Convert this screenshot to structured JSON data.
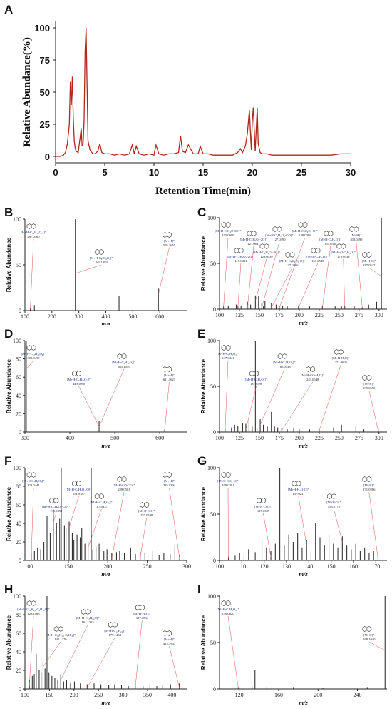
{
  "colors": {
    "chromatogram": "#b3261e",
    "peak": "#333333",
    "arrow": "#d9534f",
    "annotation": "#1a2a8c"
  },
  "chart_data": [
    {
      "panel": "A",
      "type": "line",
      "xlabel": "Retention Time(min)",
      "ylabel": "Relative Abundance(%)",
      "xlim": [
        0,
        30
      ],
      "ylim": [
        -5,
        105
      ],
      "xticks": [
        0,
        5,
        10,
        15,
        20,
        25,
        30
      ],
      "yticks": [
        0,
        25,
        50,
        75,
        100
      ],
      "x": [
        0,
        0.5,
        0.8,
        1.0,
        1.2,
        1.4,
        1.5,
        1.6,
        1.7,
        1.8,
        1.9,
        2.0,
        2.1,
        2.3,
        2.5,
        2.6,
        2.7,
        2.8,
        2.9,
        3.0,
        3.1,
        3.2,
        3.3,
        3.5,
        3.8,
        4.0,
        4.3,
        4.5,
        4.7,
        5.0,
        5.5,
        6.0,
        6.5,
        7.0,
        7.5,
        7.8,
        8.0,
        8.2,
        8.5,
        9.0,
        9.5,
        10.0,
        10.2,
        10.5,
        11.0,
        11.5,
        12.0,
        12.5,
        12.7,
        12.9,
        13.2,
        13.5,
        14.0,
        14.5,
        14.7,
        15.0,
        15.5,
        16,
        17,
        18,
        18.5,
        18.8,
        19.0,
        19.3,
        19.5,
        19.7,
        19.9,
        20.0,
        20.1,
        20.3,
        20.5,
        20.6,
        20.8,
        21.0,
        21.5,
        22,
        23,
        24,
        25,
        26,
        27,
        28,
        29,
        30
      ],
      "y": [
        0,
        0,
        1,
        3,
        10,
        25,
        58,
        40,
        62,
        30,
        12,
        6,
        4,
        3,
        15,
        22,
        8,
        10,
        28,
        82,
        100,
        55,
        12,
        5,
        2,
        2,
        4,
        10,
        3,
        2,
        2,
        1,
        2,
        1,
        2,
        9,
        2,
        8,
        2,
        1,
        2,
        1,
        9,
        2,
        1,
        2,
        2,
        3,
        16,
        4,
        3,
        9,
        2,
        2,
        8,
        2,
        2,
        1,
        1,
        1,
        3,
        6,
        3,
        8,
        18,
        36,
        5,
        28,
        38,
        4,
        38,
        10,
        3,
        2,
        2,
        1,
        1,
        1,
        1,
        1,
        1,
        1,
        2,
        2
      ]
    },
    {
      "panel": "B",
      "type": "bar",
      "xlabel": "m/z",
      "ylabel": "Relative Abundance",
      "xlim": [
        100,
        700
      ],
      "ylim": [
        0,
        100
      ],
      "xticks": [
        100,
        200,
        300,
        400,
        500,
        600
      ],
      "yticks": [
        0,
        50,
        100
      ],
      "x": [
        120,
        135,
        287,
        449,
        595
      ],
      "y": [
        3,
        6,
        100,
        16,
        24
      ],
      "annotations": [
        {
          "label": "[M+H-C₁₂H₂₂O₁₀]⁺",
          "value": "287.0560"
        },
        {
          "label": "[M+H-C₆H₁₀O₄]⁺",
          "value": "449.1083"
        },
        {
          "label": "[M+H]⁺",
          "value": "595.1655"
        }
      ]
    },
    {
      "panel": "C",
      "type": "bar",
      "xlabel": "m/z",
      "ylabel": "Relative Abundance",
      "xlim": [
        100,
        310
      ],
      "ylim": [
        0,
        100
      ],
      "xticks": [
        100,
        125,
        150,
        175,
        200,
        225,
        250,
        275,
        300
      ],
      "yticks": [
        0,
        50,
        100
      ],
      "x": [
        105,
        111,
        121,
        123,
        127,
        135,
        137,
        139,
        145,
        149,
        153,
        155,
        157,
        165,
        171,
        175,
        179,
        185,
        199,
        213,
        229,
        245,
        253,
        257,
        269,
        279,
        287,
        297,
        303
      ],
      "y": [
        3,
        4,
        5,
        3,
        4,
        8,
        6,
        5,
        15,
        14,
        6,
        3,
        9,
        7,
        5,
        4,
        4,
        3,
        4,
        3,
        4,
        3,
        3,
        4,
        3,
        2,
        5,
        8,
        100
      ],
      "annotations": [
        {
          "label": "[M+H-C₂H₂O-3O]⁺",
          "value": "105.0699"
        },
        {
          "label": "[M+H-C₈H₆O₄-2O]⁺",
          "value": "111.0441"
        },
        {
          "label": "[M+H-C₉H₆O₅-2O]⁺",
          "value": "121.0647"
        },
        {
          "label": "[M+H-C₈H₆O₄-2O]⁺",
          "value": "123.0439"
        },
        {
          "label": "[M+H-C₈H₆O₄-CO]⁺",
          "value": "127.0390"
        },
        {
          "label": "[M+H-C₈H₆O₃-O]⁺",
          "value": "137.0386"
        },
        {
          "label": "[M+H-C₇H₆O₃-O]⁺",
          "value": "139.0386"
        },
        {
          "label": "[M+H-C₈H₆O₃]⁺",
          "value": "153.0545"
        },
        {
          "label": "[M+H-C₈H₆O₄]⁺",
          "value": "155.0338"
        },
        {
          "label": "[M+H-O-C₆H₆O]⁺",
          "value": "179.0336"
        },
        {
          "label": "[M+H]⁺",
          "value": "303.0499"
        },
        {
          "label": "[M+H-O]⁺",
          "value": "287.0547"
        }
      ]
    },
    {
      "panel": "D",
      "type": "bar",
      "xlabel": "m/z",
      "ylabel": "Relative Abundance",
      "xlim": [
        300,
        660
      ],
      "ylim": [
        0,
        100
      ],
      "xticks": [
        300,
        400,
        500,
        600
      ],
      "yticks": [
        0,
        20,
        40,
        60,
        80,
        100
      ],
      "x": [
        303,
        465,
        611
      ],
      "y": [
        100,
        12,
        3
      ],
      "annotations": [
        {
          "label": "[M+H-C₁₂H₂₀O₉]⁺",
          "value": "303.0499"
        },
        {
          "label": "[M+H-C₆H₁₀O₅]⁺",
          "value": "449.1090"
        },
        {
          "label": "[M+H-C₆H₁₀O₄]⁺",
          "value": "465.1049"
        },
        {
          "label": "[M+H]⁺",
          "value": "611.1627"
        }
      ]
    },
    {
      "panel": "E",
      "type": "bar",
      "xlabel": "m/z",
      "ylabel": "Relative Abundance",
      "xlim": [
        100,
        310
      ],
      "ylim": [
        0,
        100
      ],
      "xticks": [
        100,
        125,
        150,
        175,
        200,
        225,
        250,
        275,
        300
      ],
      "yticks": [
        0,
        50,
        100
      ],
      "x": [
        107,
        115,
        119,
        123,
        129,
        133,
        137,
        141,
        145,
        147,
        151,
        155,
        160,
        165,
        169,
        173,
        178,
        185,
        193,
        200,
        213,
        225,
        243,
        253,
        271,
        281,
        299
      ],
      "y": [
        4,
        5,
        8,
        7,
        10,
        9,
        12,
        6,
        100,
        4,
        14,
        8,
        6,
        22,
        6,
        5,
        4,
        3,
        4,
        3,
        3,
        3,
        5,
        8,
        6,
        3,
        4
      ],
      "annotations": [
        {
          "label": "[M+H-C₈H₆O₄]⁺",
          "value": "147.0441"
        },
        {
          "label": "[M+H-C₈H₆O₄]⁺",
          "value": "137.0596"
        },
        {
          "label": "[M+H-C₇H₄O₃]⁺",
          "value": "165.0548"
        },
        {
          "label": "[M+H-CO-H₂O]⁺",
          "value": "243.0648"
        },
        {
          "label": "[M+H-H₂O]⁺",
          "value": "271.0603"
        },
        {
          "label": "[M+H]⁺",
          "value": "299.0550"
        }
      ]
    },
    {
      "panel": "F",
      "type": "bar",
      "xlabel": "m/z",
      "ylabel": "Relative Abundance",
      "xlim": [
        95,
        300
      ],
      "ylim": [
        0,
        100
      ],
      "xticks": [
        100,
        150,
        200,
        250,
        300
      ],
      "yticks": [
        0,
        20,
        40,
        60,
        80,
        100
      ],
      "x": [
        103,
        107,
        111,
        115,
        119,
        123,
        127,
        131,
        135,
        139,
        141,
        145,
        147,
        151,
        155,
        157,
        161,
        165,
        167,
        171,
        175,
        179,
        181,
        185,
        189,
        195,
        199,
        205,
        211,
        215,
        221,
        229,
        235,
        241,
        247,
        257,
        265,
        271,
        279,
        285,
        291
      ],
      "y": [
        8,
        10,
        14,
        12,
        20,
        48,
        30,
        55,
        40,
        45,
        100,
        38,
        35,
        42,
        30,
        22,
        28,
        25,
        35,
        18,
        20,
        100,
        12,
        15,
        18,
        10,
        12,
        8,
        9,
        10,
        8,
        14,
        7,
        9,
        8,
        10,
        6,
        8,
        7,
        16,
        6
      ],
      "annotations": [
        {
          "label": "[M+H-C₇H₆O₃]⁺",
          "value": "123.0441"
        },
        {
          "label": "[M+H-C₇H₆O₄-CO]⁺",
          "value": "139.0390"
        },
        {
          "label": "[M+H-C₆H₆O₃-O]⁺",
          "value": "151.0387"
        },
        {
          "label": "[M+H-C₇H₅O₃]⁺",
          "value": "167.0337"
        },
        {
          "label": "[M+H-CO-CO]⁺",
          "value": "229.0501"
        },
        {
          "label": "[M+H-CO]⁺",
          "value": "257.0438"
        },
        {
          "label": "[M+H]⁺",
          "value": "285.0394"
        }
      ]
    },
    {
      "panel": "G",
      "type": "bar",
      "xlabel": "m/z",
      "ylabel": "Relative Abundance",
      "xlim": [
        100,
        175
      ],
      "ylim": [
        0,
        100
      ],
      "xticks": [
        100,
        110,
        120,
        130,
        140,
        150,
        160,
        170
      ],
      "yticks": [
        0,
        50,
        100
      ],
      "x": [
        104,
        107,
        109,
        111,
        113,
        116,
        119,
        121,
        123,
        125,
        127,
        129,
        131,
        133,
        135,
        137,
        139,
        141,
        143,
        145,
        147,
        149,
        151,
        153,
        155,
        157,
        159,
        161,
        163,
        165,
        167,
        169,
        171
      ],
      "y": [
        4,
        5,
        8,
        6,
        12,
        9,
        22,
        14,
        10,
        18,
        100,
        16,
        28,
        20,
        30,
        14,
        22,
        10,
        40,
        25,
        16,
        28,
        18,
        14,
        26,
        16,
        12,
        18,
        10,
        14,
        8,
        10,
        5
      ],
      "annotations": [
        {
          "label": "[M+H-CO₂-O]⁺",
          "value": "109.0281"
        },
        {
          "label": "[M+H-CO₂]⁺",
          "value": "127.0389"
        },
        {
          "label": "[M+H-H₂O-O]⁺",
          "value": "137.0237"
        },
        {
          "label": "[M+H-O]⁺",
          "value": "153.0179"
        },
        {
          "label": "[M+H]⁺",
          "value": "171.0286"
        }
      ]
    },
    {
      "panel": "H",
      "type": "bar",
      "xlabel": "m/z",
      "ylabel": "Relative Abundance",
      "xlim": [
        100,
        430
      ],
      "ylim": [
        0,
        100
      ],
      "xticks": [
        100,
        150,
        200,
        250,
        300,
        350,
        400
      ],
      "yticks": [
        0,
        20,
        40,
        60,
        80,
        100
      ],
      "x": [
        109,
        115,
        119,
        123,
        129,
        133,
        137,
        141,
        145,
        149,
        155,
        161,
        167,
        173,
        179,
        185,
        193,
        201,
        213,
        227,
        241,
        255,
        271,
        283,
        297,
        311,
        325,
        341,
        355,
        369,
        381,
        397,
        415
      ],
      "y": [
        10,
        14,
        16,
        38,
        20,
        18,
        30,
        22,
        100,
        18,
        14,
        12,
        10,
        16,
        8,
        10,
        6,
        8,
        6,
        5,
        6,
        5,
        4,
        5,
        4,
        3,
        4,
        3,
        4,
        3,
        4,
        5,
        6
      ],
      "annotations": [
        {
          "label": "[M+H-C₁₂H₂₄-C₆H₁₀O]⁺",
          "value": "123.1168"
        },
        {
          "label": "[M+H-C₁₂H₂₄-C₆H₁₀]⁺",
          "value": "141.1276"
        },
        {
          "label": "[M+H-C₁₃H₂₄O]⁺",
          "value": "161.1325"
        },
        {
          "label": "[M+H-C₁₄H₂₄]⁺",
          "value": "179.1434"
        },
        {
          "label": "[M+H-H₂O]⁺",
          "value": "397.3834"
        },
        {
          "label": "[M+H]⁺",
          "value": "415.3933"
        }
      ]
    },
    {
      "panel": "I",
      "type": "bar",
      "xlabel": "m/z",
      "ylabel": "Relative Abundance",
      "xlim": [
        100,
        270
      ],
      "ylim": [
        0,
        100
      ],
      "xticks": [
        120,
        160,
        200,
        240
      ],
      "yticks": [
        0,
        50,
        100
      ],
      "x": [
        119,
        133,
        136,
        148,
        175,
        205,
        250,
        268
      ],
      "y": [
        2,
        3,
        20,
        2,
        2,
        1,
        2,
        100
      ],
      "annotations": [
        {
          "label": "[M+H-C₅H₈O₄]⁺",
          "value": "136.0620"
        },
        {
          "label": "[M+H]⁺",
          "value": "268.1040"
        }
      ]
    }
  ]
}
